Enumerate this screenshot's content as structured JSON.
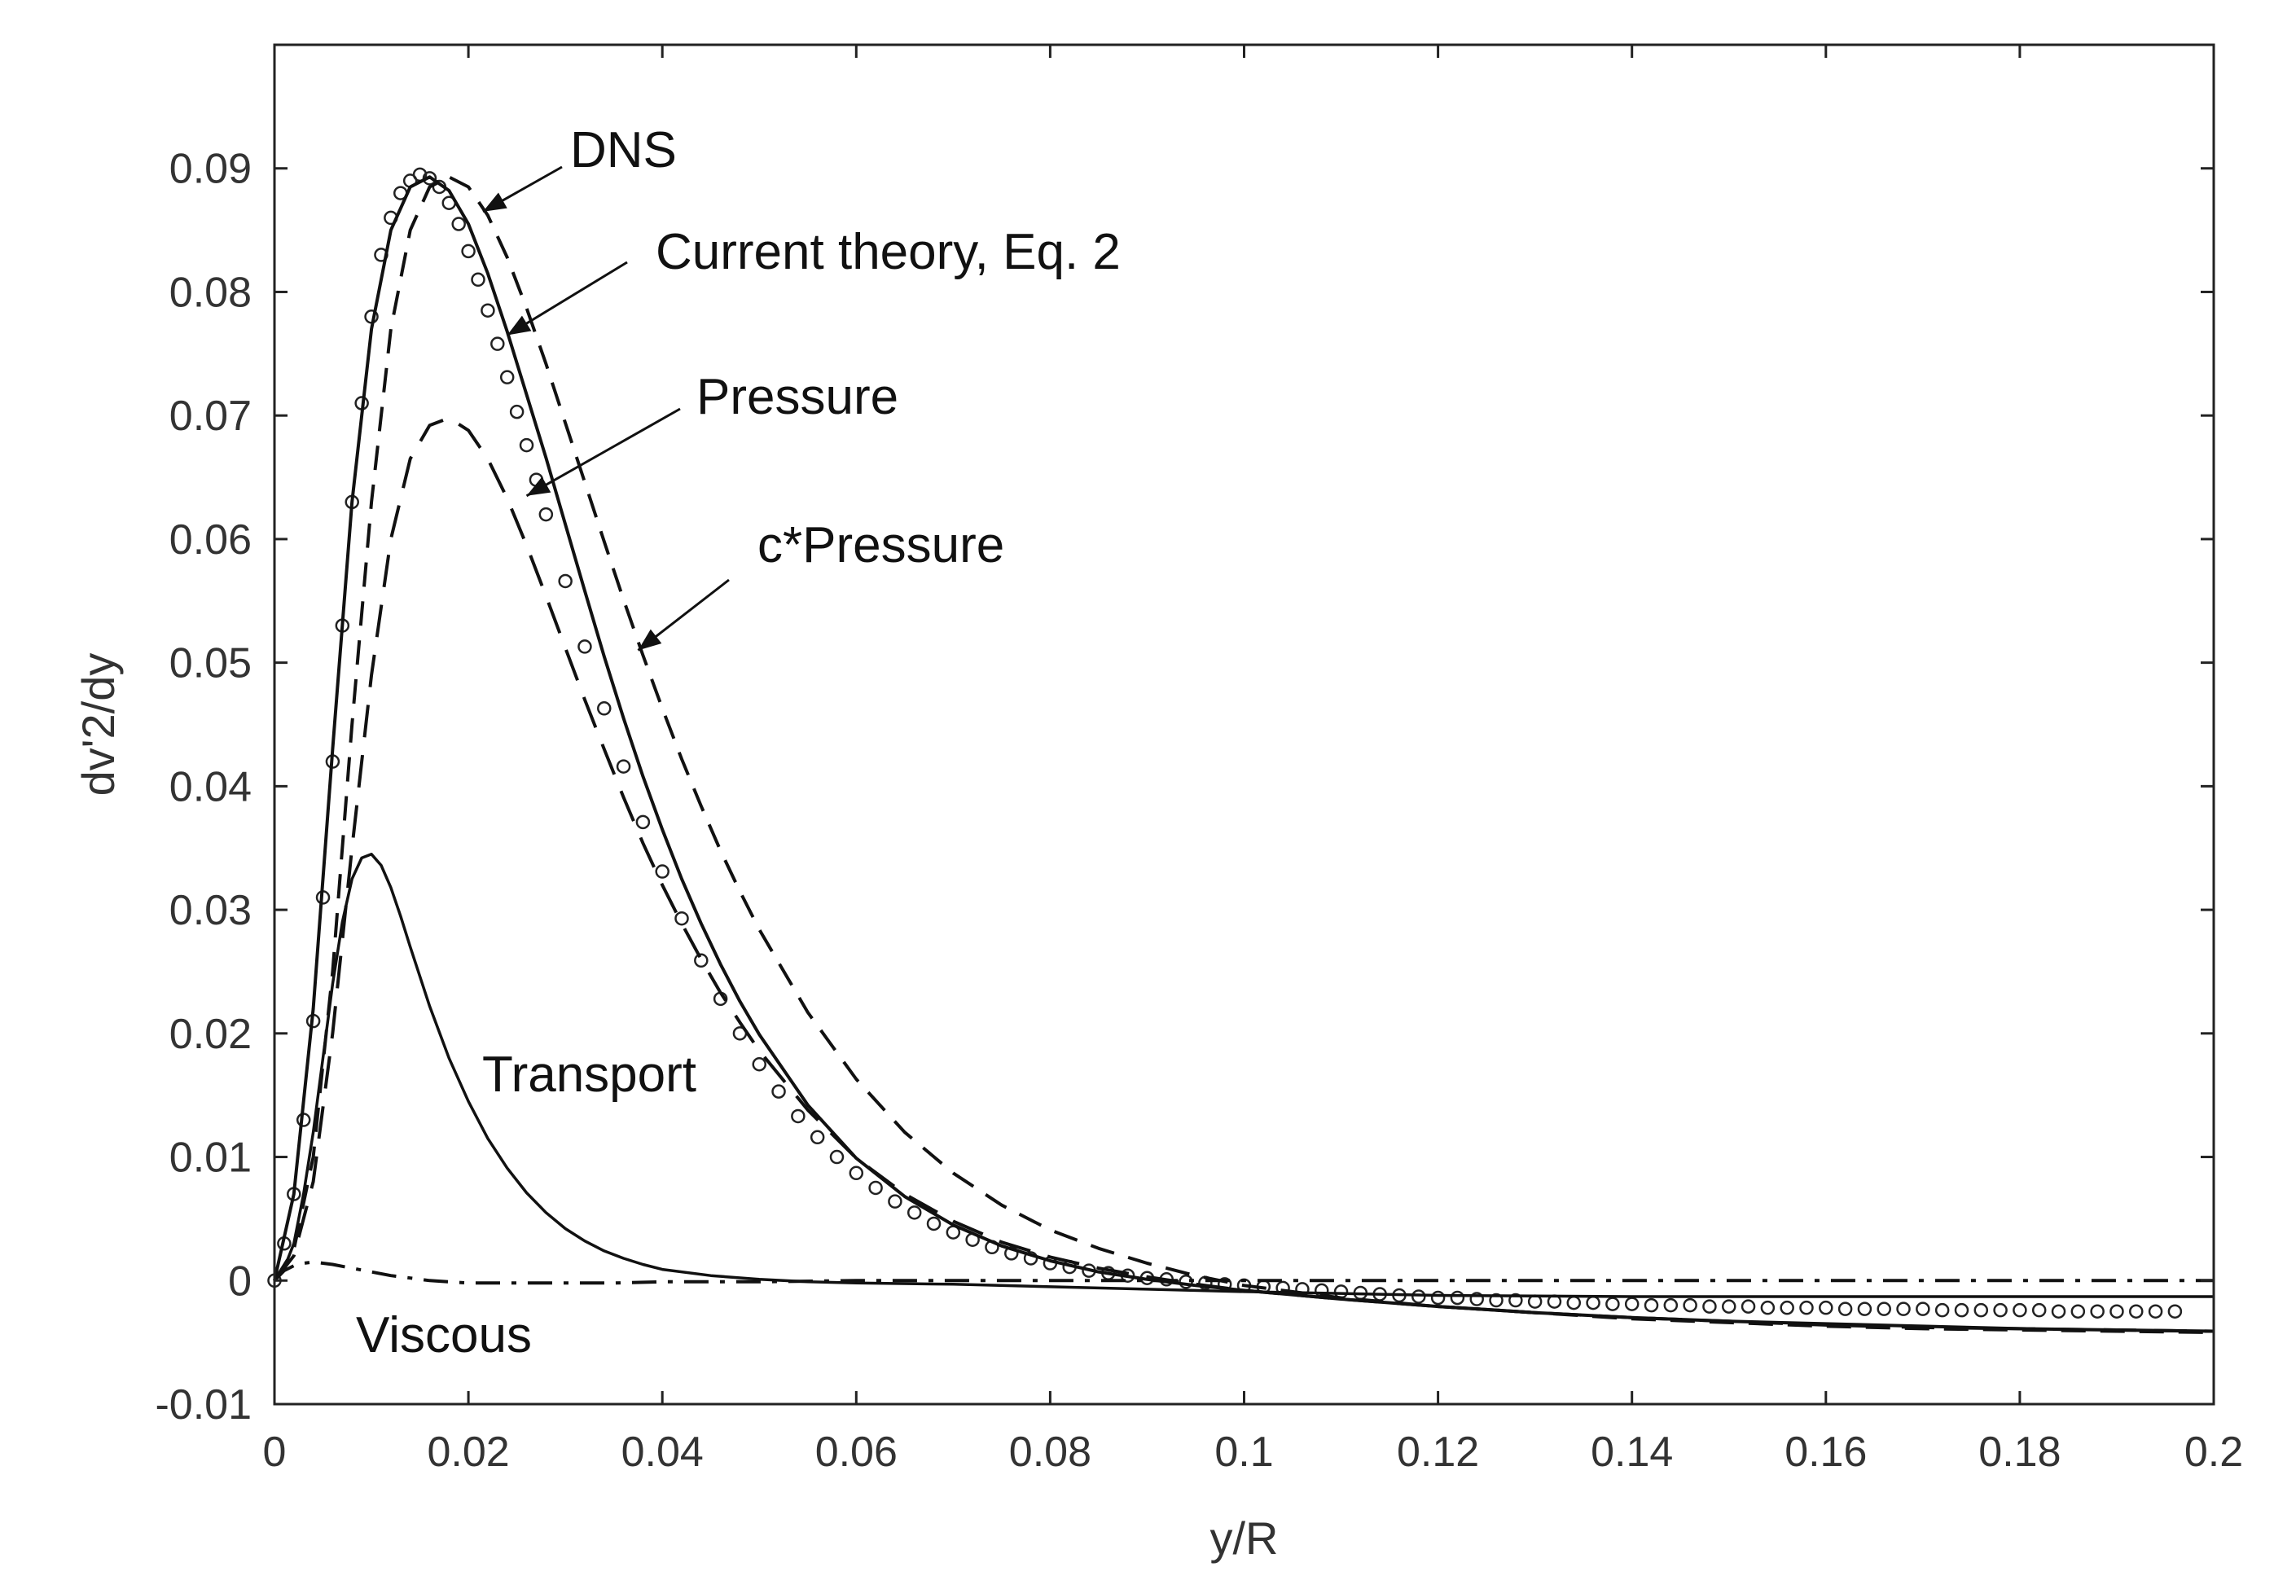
{
  "chart_data": {
    "type": "line",
    "title": "",
    "xlabel": "y/R",
    "ylabel": "dv'2/dy",
    "xlim": [
      0,
      0.2
    ],
    "ylim": [
      -0.01,
      0.1
    ],
    "grid": false,
    "xticks": [
      0,
      0.02,
      0.04,
      0.06,
      0.08,
      0.1,
      0.12,
      0.14,
      0.16,
      0.18,
      0.2
    ],
    "yticks": [
      -0.01,
      0,
      0.01,
      0.02,
      0.03,
      0.04,
      0.05,
      0.06,
      0.07,
      0.08,
      0.09
    ],
    "xtick_labels": [
      "0",
      "0.02",
      "0.04",
      "0.06",
      "0.08",
      "0.1",
      "0.12",
      "0.14",
      "0.16",
      "0.18",
      "0.2"
    ],
    "ytick_labels": [
      "-0.01",
      "0",
      "0.01",
      "0.02",
      "0.03",
      "0.04",
      "0.05",
      "0.06",
      "0.07",
      "0.08",
      "0.09"
    ],
    "series": [
      {
        "name": "DNS",
        "style": "markers-circle",
        "x": [
          0,
          0.001,
          0.002,
          0.003,
          0.004,
          0.005,
          0.006,
          0.007,
          0.008,
          0.009,
          0.01,
          0.011,
          0.012,
          0.013,
          0.014,
          0.015,
          0.016,
          0.017,
          0.018,
          0.019,
          0.02,
          0.021,
          0.022,
          0.023,
          0.024,
          0.025,
          0.026,
          0.027,
          0.028,
          0.03,
          0.032,
          0.034,
          0.036,
          0.038,
          0.04,
          0.042,
          0.044,
          0.046,
          0.048,
          0.05,
          0.052,
          0.054,
          0.056,
          0.058,
          0.06,
          0.062,
          0.064,
          0.066,
          0.068,
          0.07,
          0.072,
          0.074,
          0.076,
          0.078,
          0.08,
          0.082,
          0.084,
          0.086,
          0.088,
          0.09,
          0.092,
          0.094,
          0.096,
          0.098,
          0.1,
          0.102,
          0.104,
          0.106,
          0.108,
          0.11,
          0.112,
          0.114,
          0.116,
          0.118,
          0.12,
          0.122,
          0.124,
          0.126,
          0.128,
          0.13,
          0.132,
          0.134,
          0.136,
          0.138,
          0.14,
          0.142,
          0.144,
          0.146,
          0.148,
          0.15,
          0.152,
          0.154,
          0.156,
          0.158,
          0.16,
          0.162,
          0.164,
          0.166,
          0.168,
          0.17,
          0.172,
          0.174,
          0.176,
          0.178,
          0.18,
          0.182,
          0.184,
          0.186,
          0.188,
          0.19,
          0.192,
          0.194,
          0.196
        ],
        "y": [
          0.0,
          0.003,
          0.007,
          0.013,
          0.021,
          0.031,
          0.042,
          0.053,
          0.063,
          0.071,
          0.078,
          0.083,
          0.086,
          0.088,
          0.089,
          0.0895,
          0.0892,
          0.0885,
          0.0872,
          0.0855,
          0.0833,
          0.081,
          0.0785,
          0.0758,
          0.0731,
          0.0703,
          0.0676,
          0.0648,
          0.062,
          0.0566,
          0.0513,
          0.0463,
          0.0416,
          0.0371,
          0.0331,
          0.0293,
          0.0259,
          0.0228,
          0.02,
          0.0175,
          0.0153,
          0.0133,
          0.0116,
          0.01,
          0.0087,
          0.0075,
          0.0064,
          0.0055,
          0.0046,
          0.0039,
          0.0033,
          0.0027,
          0.0022,
          0.0018,
          0.0014,
          0.0011,
          0.0008,
          0.0006,
          0.0004,
          0.0002,
          0.0001,
          -0.0001,
          -0.0002,
          -0.0003,
          -0.0004,
          -0.0005,
          -0.0006,
          -0.0007,
          -0.0008,
          -0.0009,
          -0.001,
          -0.0011,
          -0.0012,
          -0.0013,
          -0.0014,
          -0.0014,
          -0.0015,
          -0.0016,
          -0.0016,
          -0.0017,
          -0.0017,
          -0.0018,
          -0.0018,
          -0.0019,
          -0.0019,
          -0.002,
          -0.002,
          -0.002,
          -0.0021,
          -0.0021,
          -0.0021,
          -0.0022,
          -0.0022,
          -0.0022,
          -0.0022,
          -0.0023,
          -0.0023,
          -0.0023,
          -0.0023,
          -0.0023,
          -0.0024,
          -0.0024,
          -0.0024,
          -0.0024,
          -0.0024,
          -0.0024,
          -0.0025,
          -0.0025,
          -0.0025,
          -0.0025,
          -0.0025,
          -0.0025,
          -0.0025
        ]
      },
      {
        "name": "Current theory, Eq. 2",
        "style": "solid",
        "x": [
          0,
          0.002,
          0.004,
          0.006,
          0.008,
          0.01,
          0.012,
          0.014,
          0.016,
          0.018,
          0.02,
          0.022,
          0.024,
          0.026,
          0.028,
          0.03,
          0.032,
          0.034,
          0.036,
          0.038,
          0.04,
          0.042,
          0.044,
          0.046,
          0.048,
          0.05,
          0.055,
          0.06,
          0.065,
          0.07,
          0.075,
          0.08,
          0.085,
          0.09,
          0.095,
          0.1,
          0.11,
          0.12,
          0.13,
          0.14,
          0.15,
          0.16,
          0.17,
          0.18,
          0.19,
          0.2
        ],
        "y": [
          0.0,
          0.007,
          0.022,
          0.043,
          0.063,
          0.077,
          0.085,
          0.0885,
          0.0893,
          0.0882,
          0.0855,
          0.0815,
          0.0768,
          0.0717,
          0.0666,
          0.0612,
          0.0558,
          0.0505,
          0.0455,
          0.0408,
          0.0365,
          0.0325,
          0.0289,
          0.0256,
          0.0226,
          0.0199,
          0.0142,
          0.0099,
          0.0068,
          0.0045,
          0.0028,
          0.0016,
          0.0007,
          0.0001,
          -0.0004,
          -0.0008,
          -0.0015,
          -0.0021,
          -0.0026,
          -0.003,
          -0.0033,
          -0.0035,
          -0.0037,
          -0.0039,
          -0.004,
          -0.0041
        ]
      },
      {
        "name": "Pressure",
        "style": "longdash",
        "x": [
          0,
          0.002,
          0.004,
          0.006,
          0.008,
          0.01,
          0.012,
          0.014,
          0.016,
          0.018,
          0.02,
          0.022,
          0.024,
          0.026,
          0.028,
          0.03,
          0.032,
          0.034,
          0.036,
          0.038,
          0.04,
          0.042,
          0.044,
          0.046,
          0.048,
          0.05,
          0.055,
          0.06,
          0.065,
          0.07,
          0.075,
          0.08,
          0.085,
          0.09,
          0.095,
          0.1,
          0.11,
          0.12,
          0.13,
          0.14,
          0.15,
          0.16,
          0.17,
          0.18,
          0.19,
          0.2
        ],
        "y": [
          0.0,
          0.002,
          0.008,
          0.02,
          0.035,
          0.049,
          0.06,
          0.0665,
          0.0692,
          0.0698,
          0.0688,
          0.0665,
          0.0633,
          0.0595,
          0.0554,
          0.0512,
          0.047,
          0.043,
          0.0391,
          0.0354,
          0.032,
          0.0289,
          0.026,
          0.0233,
          0.0209,
          0.0186,
          0.0138,
          0.0099,
          0.007,
          0.0048,
          0.0031,
          0.0019,
          0.001,
          0.0003,
          -0.0003,
          -0.0008,
          -0.0015,
          -0.0021,
          -0.0026,
          -0.003,
          -0.0033,
          -0.0036,
          -0.0038,
          -0.0039,
          -0.004,
          -0.0041
        ]
      },
      {
        "name": "c*Pressure",
        "style": "dash",
        "x": [
          0,
          0.002,
          0.004,
          0.006,
          0.008,
          0.01,
          0.012,
          0.014,
          0.016,
          0.018,
          0.02,
          0.022,
          0.024,
          0.026,
          0.028,
          0.03,
          0.032,
          0.034,
          0.036,
          0.038,
          0.04,
          0.042,
          0.044,
          0.046,
          0.048,
          0.05,
          0.055,
          0.06,
          0.065,
          0.07,
          0.075,
          0.08,
          0.085,
          0.09,
          0.095,
          0.1,
          0.11,
          0.12,
          0.13,
          0.14,
          0.15,
          0.16,
          0.17,
          0.18,
          0.19,
          0.2
        ],
        "y": [
          0.0,
          0.0025,
          0.01,
          0.025,
          0.045,
          0.063,
          0.077,
          0.085,
          0.0885,
          0.0893,
          0.0885,
          0.0862,
          0.0828,
          0.0787,
          0.0742,
          0.0694,
          0.0646,
          0.0598,
          0.0551,
          0.0506,
          0.0463,
          0.0422,
          0.0384,
          0.0348,
          0.0315,
          0.0284,
          0.0217,
          0.0163,
          0.012,
          0.0087,
          0.0061,
          0.0041,
          0.0026,
          0.0014,
          0.0004,
          -0.0004,
          -0.0014,
          -0.0021,
          -0.0026,
          -0.0031,
          -0.0034,
          -0.0037,
          -0.0039,
          -0.004,
          -0.0041,
          -0.0042
        ]
      },
      {
        "name": "Transport",
        "style": "solid-thin",
        "x": [
          0,
          0.001,
          0.002,
          0.003,
          0.004,
          0.005,
          0.006,
          0.007,
          0.008,
          0.009,
          0.01,
          0.011,
          0.012,
          0.013,
          0.014,
          0.015,
          0.016,
          0.018,
          0.02,
          0.022,
          0.024,
          0.026,
          0.028,
          0.03,
          0.032,
          0.034,
          0.036,
          0.038,
          0.04,
          0.045,
          0.05,
          0.055,
          0.06,
          0.07,
          0.08,
          0.09,
          0.1,
          0.12,
          0.14,
          0.16,
          0.18,
          0.2
        ],
        "y": [
          0.0,
          0.001,
          0.003,
          0.007,
          0.012,
          0.018,
          0.024,
          0.029,
          0.0325,
          0.0342,
          0.0345,
          0.0336,
          0.0318,
          0.0295,
          0.027,
          0.0246,
          0.0222,
          0.018,
          0.0145,
          0.0115,
          0.0091,
          0.0071,
          0.0055,
          0.0042,
          0.0032,
          0.0024,
          0.0018,
          0.0013,
          0.0009,
          0.0004,
          0.0001,
          -0.0001,
          -0.0002,
          -0.0003,
          -0.0005,
          -0.0007,
          -0.0009,
          -0.0012,
          -0.0013,
          -0.0013,
          -0.0013,
          -0.0013
        ]
      },
      {
        "name": "Viscous",
        "style": "dashdot",
        "x": [
          0,
          0.001,
          0.002,
          0.003,
          0.004,
          0.005,
          0.006,
          0.008,
          0.01,
          0.012,
          0.014,
          0.016,
          0.018,
          0.02,
          0.025,
          0.03,
          0.035,
          0.04,
          0.05,
          0.06,
          0.08,
          0.1,
          0.12,
          0.14,
          0.16,
          0.18,
          0.2
        ],
        "y": [
          0.0,
          0.0008,
          0.0012,
          0.0014,
          0.0015,
          0.0014,
          0.0013,
          0.001,
          0.0007,
          0.0004,
          0.0002,
          0.0,
          -0.0001,
          -0.0002,
          -0.0002,
          -0.0002,
          -0.0002,
          -0.0001,
          -0.0001,
          0.0,
          0.0,
          0.0,
          0.0,
          0.0,
          0.0,
          0.0,
          0.0
        ]
      }
    ],
    "annotations": [
      {
        "text": "DNS",
        "points_to": [
          0.0215,
          0.0865
        ]
      },
      {
        "text": "Current theory, Eq. 2",
        "points_to": [
          0.024,
          0.0765
        ]
      },
      {
        "text": "Pressure",
        "points_to": [
          0.026,
          0.0635
        ]
      },
      {
        "text": "c*Pressure",
        "points_to": [
          0.0375,
          0.051
        ]
      },
      {
        "text": "Transport",
        "points_to": null
      },
      {
        "text": "Viscous",
        "points_to": null
      }
    ]
  }
}
